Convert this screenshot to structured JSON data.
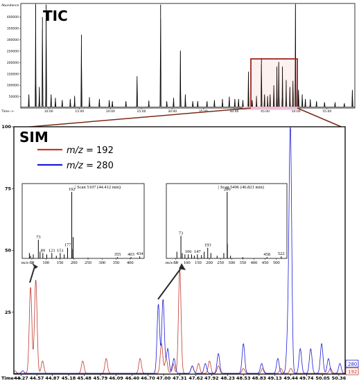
{
  "chart_data": [
    {
      "type": "line",
      "title": "TIC",
      "ylabel": "Abundance",
      "xlabel": "Time-->",
      "x_ticks": [
        "10.00",
        "15.00",
        "20.00",
        "25.00",
        "30.00",
        "35.00",
        "40.00",
        "45.00",
        "50.00",
        "55.00"
      ],
      "y_ticks": [
        "50000",
        "100000",
        "150000",
        "200000",
        "250000",
        "300000",
        "350000",
        "400000"
      ],
      "xlim": [
        5.5,
        59.5
      ],
      "ylim": [
        0,
        460000
      ],
      "series": [
        {
          "peaks": [
            [
              6.8,
              60000
            ],
            [
              7.9,
              455000
            ],
            [
              8.5,
              90000
            ],
            [
              9.0,
              400000
            ],
            [
              9.6,
              455000
            ],
            [
              10.4,
              60000
            ],
            [
              11.1,
              45000
            ],
            [
              12.2,
              35000
            ],
            [
              13.5,
              40000
            ],
            [
              14.2,
              50000
            ],
            [
              15.3,
              322000
            ],
            [
              16.6,
              45000
            ],
            [
              18.2,
              40000
            ],
            [
              19.8,
              35000
            ],
            [
              20.3,
              30000
            ],
            [
              22.5,
              30000
            ],
            [
              24.3,
              140000
            ],
            [
              26.2,
              30000
            ],
            [
              28.1,
              455000
            ],
            [
              29.1,
              30000
            ],
            [
              30.2,
              45000
            ],
            [
              31.3,
              250000
            ],
            [
              32.1,
              60000
            ],
            [
              33.3,
              30000
            ],
            [
              34.1,
              30000
            ],
            [
              35.6,
              30000
            ],
            [
              36.8,
              35000
            ],
            [
              38.1,
              40000
            ],
            [
              39.2,
              50000
            ],
            [
              40.1,
              40000
            ],
            [
              40.7,
              40000
            ],
            [
              41.4,
              35000
            ],
            [
              42.3,
              160000
            ],
            [
              42.9,
              35000
            ],
            [
              43.6,
              50000
            ],
            [
              44.4,
              220000
            ],
            [
              44.9,
              60000
            ],
            [
              45.4,
              50000
            ],
            [
              45.8,
              60000
            ],
            [
              46.4,
              100000
            ],
            [
              46.9,
              180000
            ],
            [
              47.2,
              200000
            ],
            [
              47.8,
              180000
            ],
            [
              48.4,
              120000
            ],
            [
              49.0,
              90000
            ],
            [
              49.5,
              120000
            ],
            [
              49.9,
              455000
            ],
            [
              50.4,
              80000
            ],
            [
              51.0,
              60000
            ],
            [
              51.5,
              40000
            ],
            [
              52.3,
              35000
            ],
            [
              53.3,
              30000
            ],
            [
              54.6,
              25000
            ],
            [
              56.3,
              25000
            ],
            [
              57.8,
              20000
            ],
            [
              59.1,
              80000
            ]
          ]
        }
      ],
      "annotations": [
        "zoom-box"
      ]
    },
    {
      "type": "line",
      "title": "SIM",
      "xlabel": "Time-->",
      "x_ticks": [
        "44.27",
        "44.57",
        "44.87",
        "45.18",
        "45.48",
        "45.79",
        "46.09",
        "46.40",
        "46.70",
        "47.00",
        "47.31",
        "47.62",
        "47.92",
        "48.23",
        "48.53",
        "48.83",
        "49.13",
        "49.44",
        "49.74",
        "50.05",
        "50.36"
      ],
      "y_ticks": [
        "25",
        "50",
        "75",
        "100"
      ],
      "xlim": [
        44.13,
        50.48
      ],
      "ylim": [
        0,
        100
      ],
      "legend": [
        {
          "label_prefix": "m/z",
          "label_value": " = 192",
          "color": "#c0392b"
        },
        {
          "label_prefix": "m/z",
          "label_value": " = 280",
          "color": "#1a1ad8"
        }
      ],
      "series": [
        {
          "name": "192",
          "color": "#c0392b",
          "peaks": [
            [
              44.15,
              1
            ],
            [
              44.45,
              35
            ],
            [
              44.55,
              38
            ],
            [
              44.68,
              5
            ],
            [
              45.45,
              5
            ],
            [
              45.9,
              6
            ],
            [
              46.55,
              6
            ],
            [
              46.96,
              12
            ],
            [
              47.05,
              6
            ],
            [
              47.18,
              4
            ],
            [
              47.31,
              42
            ],
            [
              47.55,
              3
            ],
            [
              47.67,
              4
            ],
            [
              47.88,
              5
            ],
            [
              48.05,
              3
            ],
            [
              48.53,
              2
            ],
            [
              48.9,
              2
            ],
            [
              49.25,
              2
            ],
            [
              49.44,
              2
            ],
            [
              50.2,
              2
            ]
          ]
        },
        {
          "name": "280",
          "color": "#1a1ad8",
          "peaks": [
            [
              44.3,
              1
            ],
            [
              46.9,
              28
            ],
            [
              46.99,
              30
            ],
            [
              47.08,
              10
            ],
            [
              47.2,
              6
            ],
            [
              47.55,
              3
            ],
            [
              47.8,
              4
            ],
            [
              48.05,
              8
            ],
            [
              48.53,
              12
            ],
            [
              48.88,
              4
            ],
            [
              49.19,
              6
            ],
            [
              49.38,
              14
            ],
            [
              49.43,
              100
            ],
            [
              49.62,
              10
            ],
            [
              49.82,
              10
            ],
            [
              50.03,
              12
            ],
            [
              50.16,
              6
            ],
            [
              50.38,
              4
            ]
          ]
        }
      ],
      "end_labels": [
        "280",
        "192"
      ],
      "insets": [
        {
          "header": "Scan 5107 (44.412 min)",
          "x_axis_label": "m/z-->",
          "x_ticks": [
            "50",
            "100",
            "150",
            "200",
            "250",
            "300",
            "350",
            "400"
          ],
          "xlim": [
            45,
            440
          ],
          "ylim": [
            0,
            100
          ],
          "bars": [
            [
              41,
              8
            ],
            [
              45,
              4
            ],
            [
              55,
              6
            ],
            [
              73,
              28
            ],
            [
              79,
              10
            ],
            [
              89,
              8
            ],
            [
              103,
              6
            ],
            [
              121,
              8
            ],
            [
              137,
              4
            ],
            [
              151,
              8
            ],
            [
              165,
              6
            ],
            [
              177,
              16
            ],
            [
              192,
              100
            ],
            [
              193,
              14
            ],
            [
              197,
              32
            ],
            [
              250,
              1
            ],
            [
              355,
              2
            ],
            [
              403,
              2
            ],
            [
              434,
              3
            ]
          ],
          "labels": [
            {
              "mz": 73,
              "text": "73"
            },
            {
              "mz": 89,
              "text": "89"
            },
            {
              "mz": 121,
              "text": "121"
            },
            {
              "mz": 151,
              "text": "151"
            },
            {
              "mz": 177,
              "text": "177"
            },
            {
              "mz": 192,
              "text": "192"
            },
            {
              "mz": 355,
              "text": "355"
            },
            {
              "mz": 403,
              "text": "403"
            },
            {
              "mz": 434,
              "text": "434"
            }
          ]
        },
        {
          "header": "Scan 5496 (46.821 min)",
          "x_axis_label": "m/z-->",
          "x_ticks": [
            "50",
            "100",
            "150",
            "200",
            "250",
            "300",
            "350",
            "400",
            "450",
            "500"
          ],
          "xlim": [
            45,
            535
          ],
          "ylim": [
            0,
            100
          ],
          "bars": [
            [
              55,
              10
            ],
            [
              73,
              34
            ],
            [
              79,
              8
            ],
            [
              91,
              6
            ],
            [
              106,
              6
            ],
            [
              121,
              6
            ],
            [
              133,
              4
            ],
            [
              147,
              6
            ],
            [
              165,
              5
            ],
            [
              177,
              10
            ],
            [
              193,
              16
            ],
            [
              207,
              8
            ],
            [
              235,
              4
            ],
            [
              265,
              8
            ],
            [
              280,
              100
            ],
            [
              281,
              22
            ],
            [
              295,
              4
            ],
            [
              350,
              2
            ],
            [
              458,
              2
            ],
            [
              522,
              3
            ]
          ],
          "labels": [
            {
              "mz": 73,
              "text": "73"
            },
            {
              "mz": 106,
              "text": "106"
            },
            {
              "mz": 147,
              "text": "147"
            },
            {
              "mz": 193,
              "text": "193"
            },
            {
              "mz": 280,
              "text": "280"
            },
            {
              "mz": 458,
              "text": "458"
            },
            {
              "mz": 522,
              "text": "522"
            }
          ]
        }
      ]
    }
  ]
}
